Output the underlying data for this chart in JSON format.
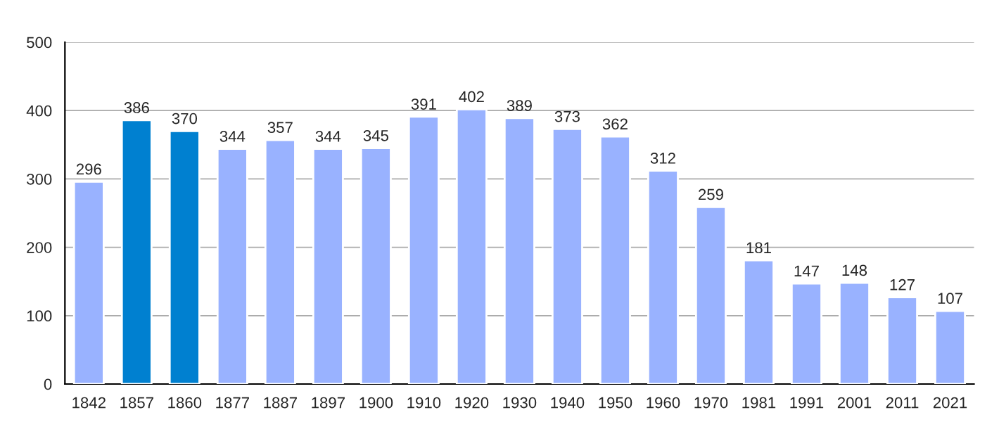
{
  "chart_data": {
    "type": "bar",
    "categories": [
      "1842",
      "1857",
      "1860",
      "1877",
      "1887",
      "1897",
      "1900",
      "1910",
      "1920",
      "1930",
      "1940",
      "1950",
      "1960",
      "1970",
      "1981",
      "1991",
      "2001",
      "2011",
      "2021"
    ],
    "values": [
      296,
      386,
      370,
      344,
      357,
      344,
      345,
      391,
      402,
      389,
      373,
      362,
      312,
      259,
      181,
      147,
      148,
      127,
      107
    ],
    "colors": [
      "#99b2ff",
      "#0080d0",
      "#0080d0",
      "#99b2ff",
      "#99b2ff",
      "#99b2ff",
      "#99b2ff",
      "#99b2ff",
      "#99b2ff",
      "#99b2ff",
      "#99b2ff",
      "#99b2ff",
      "#99b2ff",
      "#99b2ff",
      "#99b2ff",
      "#99b2ff",
      "#99b2ff",
      "#99b2ff",
      "#99b2ff"
    ],
    "ylim": [
      0,
      500
    ],
    "yticks": [
      0,
      100,
      200,
      300,
      400,
      500
    ],
    "grid": "y",
    "data_labels": true
  }
}
